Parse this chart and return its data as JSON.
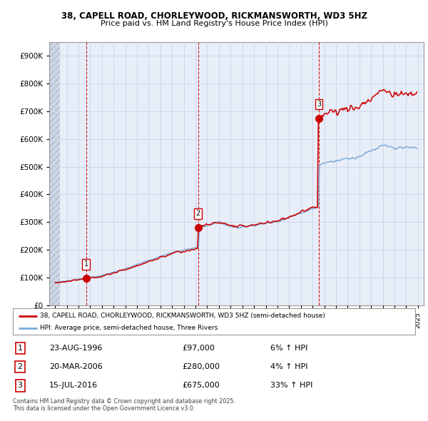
{
  "title1": "38, CAPELL ROAD, CHORLEYWOOD, RICKMANSWORTH, WD3 5HZ",
  "title2": "Price paid vs. HM Land Registry's House Price Index (HPI)",
  "legend_line1": "38, CAPELL ROAD, CHORLEYWOOD, RICKMANSWORTH, WD3 5HZ (semi-detached house)",
  "legend_line2": "HPI: Average price, semi-detached house, Three Rivers",
  "transactions": [
    {
      "num": 1,
      "date": "23-AUG-1996",
      "price": 97000,
      "note": "6% ↑ HPI",
      "year": 1996.65
    },
    {
      "num": 2,
      "date": "20-MAR-2006",
      "price": 280000,
      "note": "4% ↑ HPI",
      "year": 2006.21
    },
    {
      "num": 3,
      "date": "15-JUL-2016",
      "price": 675000,
      "note": "33% ↑ HPI",
      "year": 2016.54
    }
  ],
  "copyright_text": "Contains HM Land Registry data © Crown copyright and database right 2025.\nThis data is licensed under the Open Government Licence v3.0.",
  "red_color": "#cc0000",
  "blue_color": "#7aaadd",
  "grid_color": "#c8d4e8",
  "bg_color": "#ffffff",
  "plot_bg_color": "#e8eef8",
  "transaction_line_color": "#cc0000",
  "ylim": [
    0,
    950000
  ],
  "yticks": [
    0,
    100000,
    200000,
    300000,
    400000,
    500000,
    600000,
    700000,
    800000,
    900000
  ],
  "xlim_start": 1993.5,
  "xlim_end": 2025.5,
  "xticks": [
    1994,
    1995,
    1996,
    1997,
    1998,
    1999,
    2000,
    2001,
    2002,
    2003,
    2004,
    2005,
    2006,
    2007,
    2008,
    2009,
    2010,
    2011,
    2012,
    2013,
    2014,
    2015,
    2016,
    2017,
    2018,
    2019,
    2020,
    2021,
    2022,
    2023,
    2024,
    2025
  ]
}
